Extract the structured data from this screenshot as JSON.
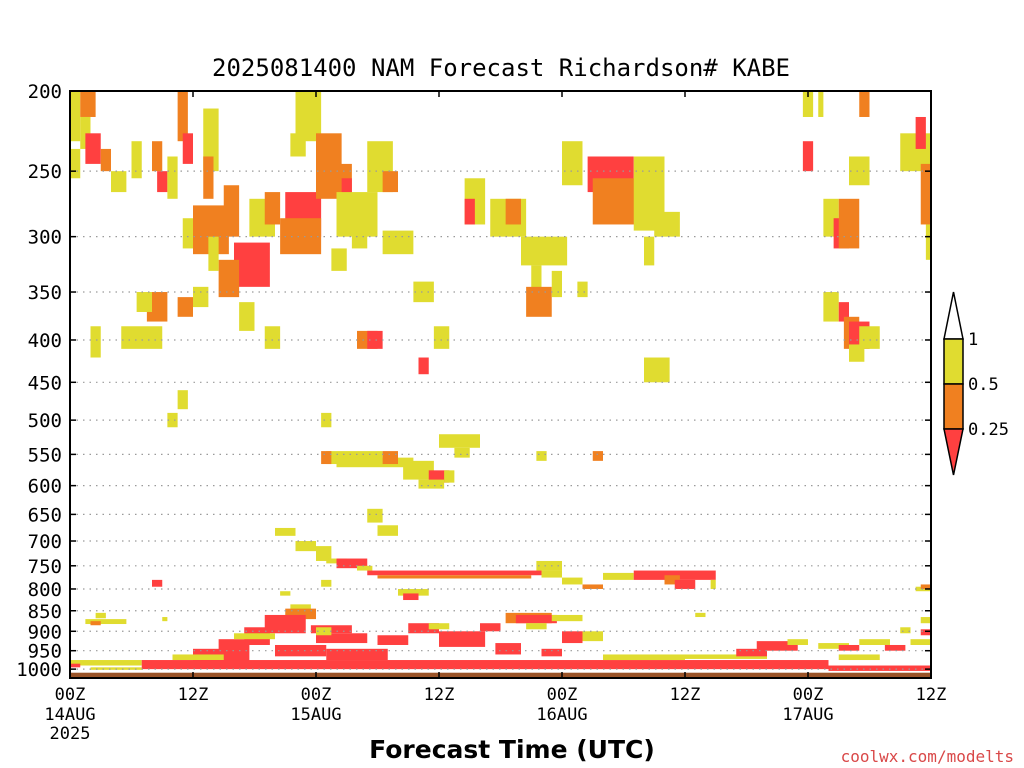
{
  "chart_data": {
    "type": "heatmap",
    "title": "2025081400 NAM Forecast Richardson# KABE",
    "xlabel": "Forecast Time (UTC)",
    "ylabel": "",
    "credit": "coolwx.com/modelts",
    "x_ticks": [
      {
        "hour": 0,
        "label": "00Z",
        "date": "14AUG",
        "year": "2025"
      },
      {
        "hour": 12,
        "label": "12Z",
        "date": "",
        "year": ""
      },
      {
        "hour": 24,
        "label": "00Z",
        "date": "15AUG",
        "year": ""
      },
      {
        "hour": 36,
        "label": "12Z",
        "date": "",
        "year": ""
      },
      {
        "hour": 48,
        "label": "00Z",
        "date": "16AUG",
        "year": ""
      },
      {
        "hour": 60,
        "label": "12Z",
        "date": "",
        "year": ""
      },
      {
        "hour": 72,
        "label": "00Z",
        "date": "17AUG",
        "year": ""
      },
      {
        "hour": 84,
        "label": "12Z",
        "date": "",
        "year": ""
      }
    ],
    "xlim": [
      0,
      84
    ],
    "y_axis": {
      "scale": "log",
      "inverted": true,
      "ylim": [
        200,
        1025
      ],
      "ticks": [
        200,
        250,
        300,
        350,
        400,
        450,
        500,
        550,
        600,
        650,
        700,
        750,
        800,
        850,
        900,
        950,
        1000
      ]
    },
    "grid": true,
    "colorbar": {
      "placement": "right",
      "levels": [
        {
          "label": "1",
          "value": 1
        },
        {
          "label": "0.5",
          "value": 0.5
        },
        {
          "label": "0.25",
          "value": 0.25
        }
      ],
      "colors": {
        "lt_0_25": "#FF4040",
        "0_25_to_0_5": "#F08020",
        "0_5_to_1": "#E0DC30",
        "gt_1": "#FFFFFF"
      }
    },
    "ground_color": "#9A5428",
    "ri_bands": [
      {
        "class": "lt_0_25",
        "meaning": "Ri below 0.25"
      },
      {
        "class": "0_25_to_0_5",
        "meaning": "Ri 0.25 to 0.5"
      },
      {
        "class": "0_5_to_1",
        "meaning": "Ri 0.5 to 1"
      }
    ],
    "cells": [
      [
        "0_5_to_1",
        0,
        1,
        200,
        230
      ],
      [
        "0_25_to_0_5",
        1,
        2.5,
        200,
        215
      ],
      [
        "0_5_to_1",
        1,
        2,
        215,
        235
      ],
      [
        "lt_0_25",
        1.5,
        3,
        225,
        245
      ],
      [
        "0_25_to_0_5",
        3,
        4,
        235,
        250
      ],
      [
        "0_5_to_1",
        4,
        5.5,
        250,
        265
      ],
      [
        "0_5_to_1",
        0,
        1,
        235,
        255
      ],
      [
        "0_5_to_1",
        6,
        7,
        230,
        255
      ],
      [
        "0_25_to_0_5",
        8,
        9,
        230,
        250
      ],
      [
        "lt_0_25",
        8.5,
        9.5,
        250,
        265
      ],
      [
        "0_5_to_1",
        9.5,
        10.5,
        240,
        270
      ],
      [
        "0_25_to_0_5",
        10.5,
        11.5,
        200,
        230
      ],
      [
        "lt_0_25",
        11,
        12,
        225,
        245
      ],
      [
        "0_5_to_1",
        13,
        14.5,
        210,
        250
      ],
      [
        "0_25_to_0_5",
        13,
        14,
        240,
        270
      ],
      [
        "0_5_to_1",
        11,
        13,
        285,
        310
      ],
      [
        "0_25_to_0_5",
        12,
        15.5,
        275,
        315
      ],
      [
        "0_25_to_0_5",
        15,
        16.5,
        260,
        300
      ],
      [
        "lt_0_25",
        16,
        19.5,
        305,
        345
      ],
      [
        "0_25_to_0_5",
        14.5,
        16.5,
        320,
        355
      ],
      [
        "0_5_to_1",
        13.5,
        14.5,
        300,
        330
      ],
      [
        "0_5_to_1",
        17.5,
        20,
        270,
        300
      ],
      [
        "0_25_to_0_5",
        19,
        20.5,
        265,
        290
      ],
      [
        "lt_0_25",
        21,
        24.5,
        265,
        300
      ],
      [
        "0_25_to_0_5",
        20.5,
        24.5,
        285,
        315
      ],
      [
        "0_5_to_1",
        22,
        24.5,
        200,
        230
      ],
      [
        "0_5_to_1",
        21.5,
        23,
        225,
        240
      ],
      [
        "0_25_to_0_5",
        24,
        26.5,
        225,
        270
      ],
      [
        "0_25_to_0_5",
        25,
        27.5,
        245,
        265
      ],
      [
        "lt_0_25",
        26.5,
        27.5,
        255,
        270
      ],
      [
        "0_5_to_1",
        26,
        30,
        265,
        300
      ],
      [
        "0_5_to_1",
        29,
        31.5,
        230,
        265
      ],
      [
        "0_25_to_0_5",
        30.5,
        32,
        250,
        265
      ],
      [
        "0_5_to_1",
        27.5,
        29,
        280,
        310
      ],
      [
        "0_5_to_1",
        30.5,
        33.5,
        295,
        315
      ],
      [
        "0_5_to_1",
        25.5,
        27,
        310,
        330
      ],
      [
        "0_5_to_1",
        19,
        20.5,
        385,
        410
      ],
      [
        "0_5_to_1",
        2,
        3,
        385,
        420
      ],
      [
        "0_5_to_1",
        5,
        9,
        385,
        410
      ],
      [
        "0_25_to_0_5",
        7.5,
        9.5,
        350,
        380
      ],
      [
        "0_5_to_1",
        6.5,
        8,
        350,
        370
      ],
      [
        "0_25_to_0_5",
        10.5,
        12,
        355,
        375
      ],
      [
        "0_5_to_1",
        12,
        13.5,
        345,
        365
      ],
      [
        "0_5_to_1",
        16.5,
        18,
        360,
        390
      ],
      [
        "0_25_to_0_5",
        28,
        30,
        390,
        410
      ],
      [
        "lt_0_25",
        29,
        30.5,
        390,
        410
      ],
      [
        "0_5_to_1",
        33.5,
        35.5,
        340,
        360
      ],
      [
        "0_5_to_1",
        35.5,
        37,
        385,
        410
      ],
      [
        "lt_0_25",
        34,
        35,
        420,
        440
      ],
      [
        "0_5_to_1",
        38.5,
        40.5,
        255,
        290
      ],
      [
        "0_5_to_1",
        41,
        44.5,
        270,
        300
      ],
      [
        "0_25_to_0_5",
        42.5,
        44,
        270,
        290
      ],
      [
        "lt_0_25",
        38.5,
        39.5,
        270,
        290
      ],
      [
        "0_5_to_1",
        44,
        48.5,
        300,
        325
      ],
      [
        "0_5_to_1",
        45,
        46,
        325,
        365
      ],
      [
        "0_25_to_0_5",
        44.5,
        47,
        345,
        375
      ],
      [
        "0_5_to_1",
        47,
        48,
        330,
        355
      ],
      [
        "0_5_to_1",
        49.5,
        50.5,
        340,
        355
      ],
      [
        "0_5_to_1",
        48,
        50,
        230,
        260
      ],
      [
        "lt_0_25",
        50.5,
        55,
        240,
        265
      ],
      [
        "0_25_to_0_5",
        51,
        55.5,
        255,
        290
      ],
      [
        "0_5_to_1",
        55,
        58,
        240,
        295
      ],
      [
        "0_5_to_1",
        56,
        57,
        300,
        325
      ],
      [
        "0_5_to_1",
        57,
        59.5,
        280,
        300
      ],
      [
        "0_5_to_1",
        56,
        58.5,
        420,
        450
      ],
      [
        "0_5_to_1",
        71.5,
        72.5,
        200,
        215
      ],
      [
        "lt_0_25",
        71.5,
        72.5,
        230,
        250
      ],
      [
        "0_5_to_1",
        73,
        73.5,
        200,
        215
      ],
      [
        "0_5_to_1",
        73.5,
        75,
        270,
        300
      ],
      [
        "lt_0_25",
        74.5,
        76,
        285,
        310
      ],
      [
        "0_25_to_0_5",
        75,
        77,
        270,
        310
      ],
      [
        "0_5_to_1",
        76,
        78,
        240,
        260
      ],
      [
        "0_25_to_0_5",
        77,
        78,
        200,
        215
      ],
      [
        "0_5_to_1",
        81,
        84,
        225,
        250
      ],
      [
        "lt_0_25",
        82.5,
        83.5,
        215,
        235
      ],
      [
        "0_25_to_0_5",
        83,
        84,
        245,
        290
      ],
      [
        "0_5_to_1",
        83.5,
        84,
        290,
        320
      ],
      [
        "0_5_to_1",
        73.5,
        75,
        350,
        380
      ],
      [
        "lt_0_25",
        75,
        76,
        360,
        380
      ],
      [
        "0_25_to_0_5",
        75.5,
        77,
        375,
        410
      ],
      [
        "lt_0_25",
        76,
        78,
        380,
        410
      ],
      [
        "0_5_to_1",
        77,
        79,
        385,
        410
      ],
      [
        "0_5_to_1",
        76,
        77.5,
        405,
        425
      ],
      [
        "0_5_to_1",
        10.5,
        11.5,
        460,
        485
      ],
      [
        "0_5_to_1",
        9.5,
        10.5,
        490,
        510
      ],
      [
        "0_5_to_1",
        24.5,
        25.5,
        490,
        510
      ],
      [
        "0_5_to_1",
        36,
        40,
        520,
        540
      ],
      [
        "0_5_to_1",
        37.5,
        39,
        540,
        555
      ],
      [
        "0_5_to_1",
        25,
        30.5,
        545,
        565
      ],
      [
        "0_5_to_1",
        26,
        33.5,
        555,
        570
      ],
      [
        "0_25_to_0_5",
        24.5,
        25.5,
        545,
        565
      ],
      [
        "0_25_to_0_5",
        30.5,
        32,
        545,
        565
      ],
      [
        "0_5_to_1",
        32.5,
        35.5,
        560,
        590
      ],
      [
        "lt_0_25",
        35,
        37,
        575,
        595
      ],
      [
        "0_5_to_1",
        34,
        36.5,
        590,
        605
      ],
      [
        "0_5_to_1",
        36.5,
        37.5,
        575,
        595
      ],
      [
        "0_5_to_1",
        45.5,
        46.5,
        545,
        560
      ],
      [
        "0_25_to_0_5",
        51,
        52,
        545,
        560
      ],
      [
        "0_5_to_1",
        29,
        30.5,
        640,
        665
      ],
      [
        "0_5_to_1",
        30,
        32,
        670,
        690
      ],
      [
        "0_5_to_1",
        20,
        22,
        675,
        690
      ],
      [
        "0_5_to_1",
        22,
        24,
        700,
        720
      ],
      [
        "0_5_to_1",
        24,
        25.5,
        710,
        740
      ],
      [
        "0_5_to_1",
        25,
        27,
        735,
        745
      ],
      [
        "lt_0_25",
        26,
        29,
        735,
        755
      ],
      [
        "0_5_to_1",
        28,
        29.5,
        750,
        760
      ],
      [
        "0_5_to_1",
        45.5,
        48,
        740,
        760
      ],
      [
        "lt_0_25",
        29,
        46,
        760,
        770
      ],
      [
        "0_25_to_0_5",
        30,
        45,
        770,
        777
      ],
      [
        "0_5_to_1",
        46,
        48,
        760,
        775
      ],
      [
        "0_5_to_1",
        48,
        50,
        775,
        790
      ],
      [
        "0_25_to_0_5",
        50,
        52,
        790,
        800
      ],
      [
        "0_5_to_1",
        52,
        55,
        765,
        780
      ],
      [
        "lt_0_25",
        55,
        63,
        760,
        780
      ],
      [
        "0_25_to_0_5",
        58,
        59.5,
        770,
        790
      ],
      [
        "lt_0_25",
        59,
        61,
        780,
        800
      ],
      [
        "0_5_to_1",
        62.5,
        63,
        780,
        800
      ],
      [
        "lt_0_25",
        8,
        9,
        780,
        795
      ],
      [
        "0_5_to_1",
        20.5,
        21.5,
        805,
        815
      ],
      [
        "0_5_to_1",
        24.5,
        25.5,
        780,
        795
      ],
      [
        "0_5_to_1",
        32,
        35,
        800,
        815
      ],
      [
        "lt_0_25",
        32.5,
        34,
        810,
        825
      ],
      [
        "0_5_to_1",
        82.5,
        84,
        795,
        805
      ],
      [
        "0_25_to_0_5",
        83,
        84,
        790,
        800
      ],
      [
        "0_5_to_1",
        1.5,
        5.5,
        870,
        882
      ],
      [
        "0_25_to_0_5",
        2,
        3,
        875,
        885
      ],
      [
        "0_5_to_1",
        21.5,
        23.5,
        835,
        855
      ],
      [
        "0_25_to_0_5",
        21,
        24,
        845,
        870
      ],
      [
        "lt_0_25",
        19,
        23,
        860,
        905
      ],
      [
        "lt_0_25",
        17,
        19.5,
        890,
        935
      ],
      [
        "lt_0_25",
        14.5,
        17.5,
        920,
        980
      ],
      [
        "lt_0_25",
        12,
        15,
        945,
        985
      ],
      [
        "lt_0_25",
        23.5,
        27.5,
        885,
        905
      ],
      [
        "lt_0_25",
        24,
        29,
        905,
        930
      ],
      [
        "0_5_to_1",
        24,
        25.5,
        890,
        910
      ],
      [
        "lt_0_25",
        30,
        33,
        910,
        935
      ],
      [
        "lt_0_25",
        33,
        36,
        880,
        905
      ],
      [
        "0_5_to_1",
        35,
        37,
        880,
        895
      ],
      [
        "lt_0_25",
        36,
        40.5,
        900,
        940
      ],
      [
        "lt_0_25",
        40,
        42,
        880,
        900
      ],
      [
        "0_25_to_0_5",
        42.5,
        47,
        855,
        880
      ],
      [
        "lt_0_25",
        43.5,
        47.5,
        860,
        880
      ],
      [
        "0_5_to_1",
        44.5,
        46.5,
        880,
        895
      ],
      [
        "0_5_to_1",
        47,
        50,
        860,
        875
      ],
      [
        "lt_0_25",
        48,
        50,
        900,
        930
      ],
      [
        "0_5_to_1",
        50,
        52,
        900,
        925
      ],
      [
        "lt_0_25",
        41.5,
        44,
        930,
        960
      ],
      [
        "lt_0_25",
        46,
        48,
        945,
        965
      ],
      [
        "lt_0_25",
        20,
        25,
        935,
        965
      ],
      [
        "lt_0_25",
        25,
        31,
        945,
        975
      ],
      [
        "0_5_to_1",
        16,
        20,
        905,
        920
      ],
      [
        "0_5_to_1",
        10,
        15,
        960,
        975
      ],
      [
        "0_5_to_1",
        0,
        7,
        975,
        990
      ],
      [
        "lt_0_25",
        0,
        1,
        985,
        995
      ],
      [
        "0_5_to_1",
        2,
        7,
        995,
        1002
      ],
      [
        "lt_0_25",
        7,
        74,
        975,
        1000
      ],
      [
        "0_5_to_1",
        52,
        60,
        960,
        975
      ],
      [
        "0_5_to_1",
        60,
        68,
        960,
        972
      ],
      [
        "lt_0_25",
        65,
        68,
        945,
        965
      ],
      [
        "lt_0_25",
        67,
        71,
        925,
        950
      ],
      [
        "0_5_to_1",
        70,
        72,
        920,
        935
      ],
      [
        "0_5_to_1",
        73,
        76,
        930,
        945
      ],
      [
        "lt_0_25",
        75,
        77,
        935,
        950
      ],
      [
        "0_5_to_1",
        77,
        80,
        920,
        935
      ],
      [
        "lt_0_25",
        79.5,
        81.5,
        935,
        950
      ],
      [
        "0_5_to_1",
        82,
        84,
        920,
        935
      ],
      [
        "lt_0_25",
        83,
        84,
        895,
        910
      ],
      [
        "0_5_to_1",
        83,
        84,
        865,
        880
      ],
      [
        "0_5_to_1",
        81,
        82,
        890,
        905
      ],
      [
        "0_5_to_1",
        75,
        79,
        960,
        975
      ],
      [
        "lt_0_25",
        74,
        84,
        990,
        1005
      ],
      [
        "0_5_to_1",
        2.5,
        3.5,
        855,
        868
      ],
      [
        "0_5_to_1",
        61,
        62,
        855,
        865
      ],
      [
        "0_5_to_1",
        9,
        9.5,
        865,
        875
      ]
    ]
  }
}
